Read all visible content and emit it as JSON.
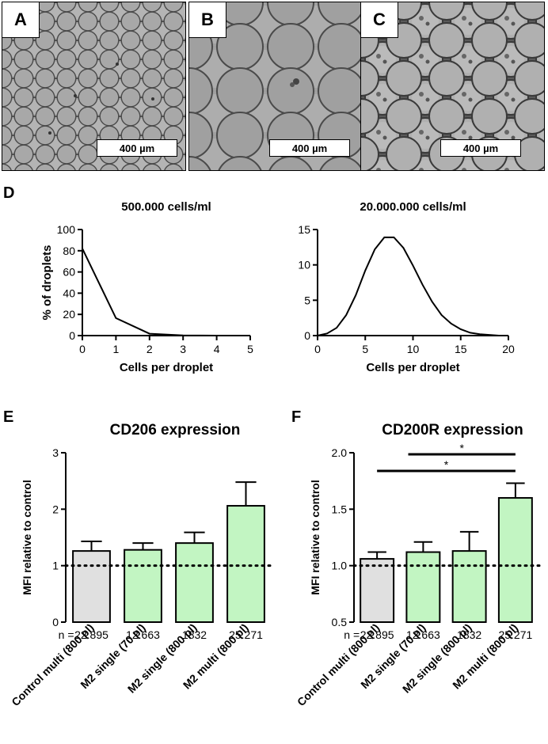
{
  "panels": {
    "a": {
      "label": "A",
      "scale": "400 µm"
    },
    "b": {
      "label": "B",
      "scale": "400 µm"
    },
    "c": {
      "label": "C",
      "scale": "400 µm"
    },
    "d": {
      "label": "D"
    },
    "e": {
      "label": "E"
    },
    "f": {
      "label": "F"
    }
  },
  "chart_data": [
    {
      "id": "d-left",
      "type": "line",
      "title": "500.000 cells/ml",
      "xlabel": "Cells per droplet",
      "ylabel": "% of droplets",
      "xlim": [
        0,
        5
      ],
      "ylim": [
        0,
        100
      ],
      "xticks": [
        "0",
        "1",
        "2",
        "3",
        "4",
        "5"
      ],
      "yticks": [
        "0",
        "20",
        "40",
        "60",
        "80",
        "100"
      ],
      "x": [
        0,
        1,
        2,
        3,
        4,
        5
      ],
      "values": [
        82,
        16.5,
        1.8,
        0.2,
        0,
        0
      ]
    },
    {
      "id": "d-right",
      "type": "line",
      "title": "20.000.000 cells/ml",
      "xlabel": "Cells per droplet",
      "ylabel": "",
      "xlim": [
        0,
        20
      ],
      "ylim": [
        0,
        15
      ],
      "xticks": [
        "0",
        "5",
        "10",
        "15",
        "20"
      ],
      "yticks": [
        "0",
        "5",
        "10",
        "15"
      ],
      "x": [
        0,
        1,
        2,
        3,
        4,
        5,
        6,
        7,
        8,
        9,
        10,
        11,
        12,
        13,
        14,
        15,
        16,
        17,
        18,
        19,
        20
      ],
      "values": [
        0,
        0.3,
        1.1,
        2.9,
        5.7,
        9.2,
        12.2,
        13.9,
        13.9,
        12.4,
        9.9,
        7.2,
        4.8,
        2.9,
        1.7,
        0.9,
        0.4,
        0.2,
        0.1,
        0,
        0
      ]
    },
    {
      "id": "e",
      "type": "bar",
      "title": "CD206 expression",
      "ylabel": "MFI relative to control",
      "ylim": [
        0,
        3
      ],
      "yticks": [
        "0",
        "1",
        "2",
        "3"
      ],
      "categories": [
        "Control multi (800 pl)",
        "M2 single (70 pl)",
        "M2 single (800 pl)",
        "M2 multi (800 pl)"
      ],
      "values": [
        1.26,
        1.28,
        1.4,
        2.06
      ],
      "errors": [
        0.17,
        0.12,
        0.19,
        0.42
      ],
      "n_prefix": "n = ",
      "n_values": [
        "22.895",
        "12.663",
        "1832",
        "25.271"
      ],
      "bar_colors": [
        "#e0e0e0",
        "#c2f5c2",
        "#c2f5c2",
        "#c2f5c2"
      ],
      "reference_line": 1
    },
    {
      "id": "f",
      "type": "bar",
      "title": "CD200R expression",
      "ylabel": "MFI relative to control",
      "ylim": [
        0.5,
        2.0
      ],
      "yticks": [
        "0.5",
        "1.0",
        "1.5",
        "2.0"
      ],
      "categories": [
        "Control multi (800 pl)",
        "M2 single (70 pl)",
        "M2 single (800 pl)",
        "M2 multi (800 pl)"
      ],
      "values": [
        1.06,
        1.12,
        1.13,
        1.6
      ],
      "errors": [
        0.06,
        0.09,
        0.17,
        0.13
      ],
      "n_prefix": "n = ",
      "n_values": [
        "22.895",
        "12.663",
        "1832",
        "25.271"
      ],
      "bar_colors": [
        "#e0e0e0",
        "#c2f5c2",
        "#c2f5c2",
        "#c2f5c2"
      ],
      "reference_line": 1.0,
      "significance": [
        {
          "from": 1,
          "to": 3,
          "label": "*"
        },
        {
          "from": 0,
          "to": 3,
          "label": "*"
        }
      ]
    }
  ]
}
